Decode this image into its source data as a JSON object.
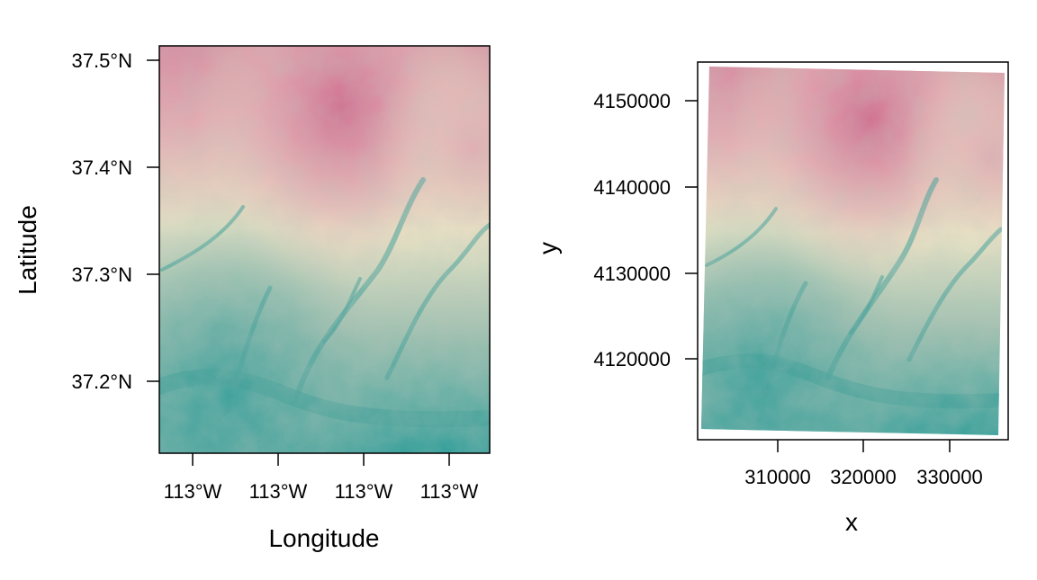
{
  "figure": {
    "panels": [
      {
        "id": "geographic",
        "xlabel": "Longitude",
        "ylabel": "Latitude",
        "x_ticks": [
          "113°W",
          "113°W",
          "113°W",
          "113°W"
        ],
        "y_ticks": [
          "37.2°N",
          "37.3°N",
          "37.4°N",
          "37.5°N"
        ]
      },
      {
        "id": "projected",
        "xlabel": "x",
        "ylabel": "y",
        "x_ticks": [
          "310000",
          "320000",
          "330000"
        ],
        "y_ticks": [
          "4120000",
          "4130000",
          "4140000",
          "4150000"
        ]
      }
    ],
    "palette": {
      "low": "#2f9e99",
      "mid_low": "#9fc1b0",
      "mid": "#ece6c6",
      "mid_high": "#e5aab2",
      "high": "#d2668c"
    }
  }
}
